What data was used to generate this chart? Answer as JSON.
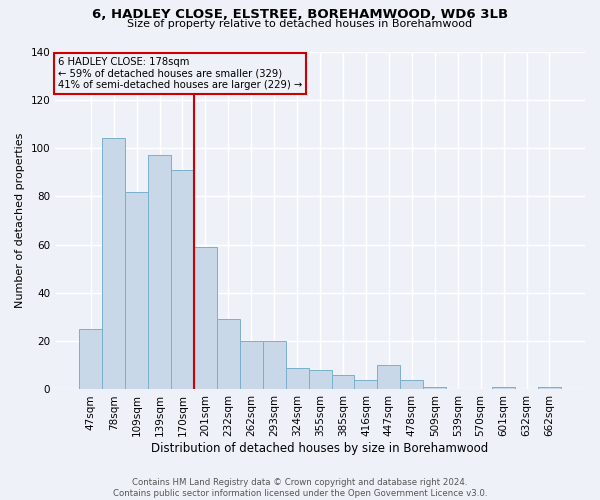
{
  "title": "6, HADLEY CLOSE, ELSTREE, BOREHAMWOOD, WD6 3LB",
  "subtitle": "Size of property relative to detached houses in Borehamwood",
  "xlabel": "Distribution of detached houses by size in Borehamwood",
  "ylabel": "Number of detached properties",
  "bar_labels": [
    "47sqm",
    "78sqm",
    "109sqm",
    "139sqm",
    "170sqm",
    "201sqm",
    "232sqm",
    "262sqm",
    "293sqm",
    "324sqm",
    "355sqm",
    "385sqm",
    "416sqm",
    "447sqm",
    "478sqm",
    "509sqm",
    "539sqm",
    "570sqm",
    "601sqm",
    "632sqm",
    "662sqm"
  ],
  "bar_values": [
    25,
    104,
    82,
    97,
    91,
    59,
    29,
    20,
    20,
    9,
    8,
    6,
    4,
    10,
    4,
    1,
    0,
    0,
    1,
    0,
    1
  ],
  "bar_color": "#c8d8e8",
  "bar_edgecolor": "#7ab0cc",
  "background_color": "#eef2f8",
  "grid_color": "#ffffff",
  "annotation_text": "6 HADLEY CLOSE: 178sqm\n← 59% of detached houses are smaller (329)\n41% of semi-detached houses are larger (229) →",
  "annotation_box_edgecolor": "#cc0000",
  "vline_x": 4.5,
  "vline_color": "#cc0000",
  "ylim": [
    0,
    140
  ],
  "yticks": [
    0,
    20,
    40,
    60,
    80,
    100,
    120,
    140
  ],
  "footer_line1": "Contains HM Land Registry data © Crown copyright and database right 2024.",
  "footer_line2": "Contains public sector information licensed under the Open Government Licence v3.0."
}
